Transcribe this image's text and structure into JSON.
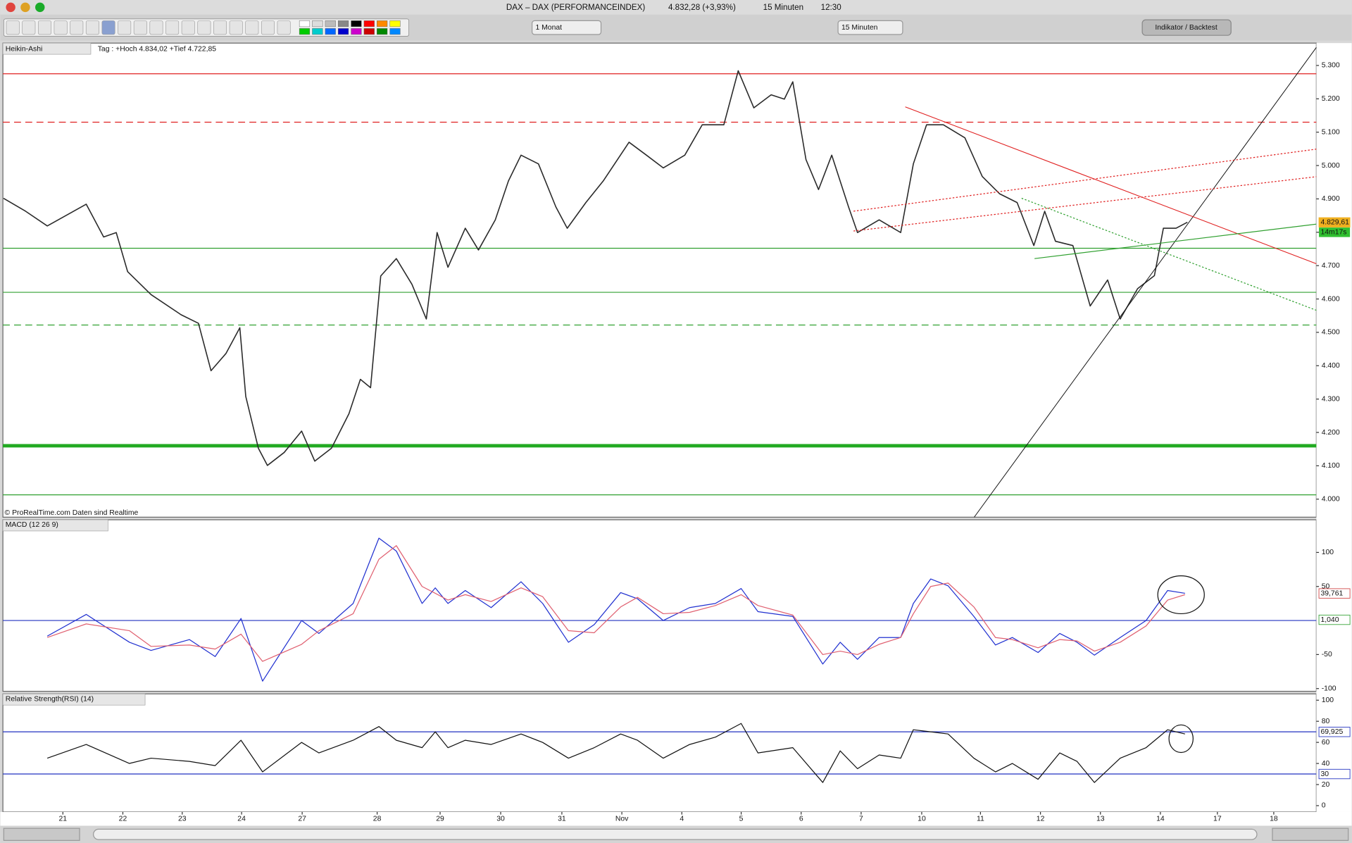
{
  "window": {
    "title": "DAX – DAX (PERFORMANCEINDEX)",
    "quote": "4.832,28 (+3,93%)",
    "interval": "15 Minuten",
    "time": "12:30"
  },
  "toolbar": {
    "period": "1 Monat",
    "interval": "15 Minuten",
    "button": "Indikator / Backtest"
  },
  "chart_data": [
    {
      "type": "line",
      "title": "Heikin-Ashi",
      "subtitle": "Tag : +Hoch 4.834,02 +Tief 4.722,85",
      "annotation": "© ProRealTime.com  Daten sind Realtime",
      "x": [
        -0.99,
        -0.62,
        -0.26,
        0.39,
        0.68,
        0.89,
        1.08,
        1.47,
        1.97,
        2.26,
        2.47,
        2.72,
        2.95,
        3.05,
        3.26,
        3.41,
        3.69,
        3.98,
        4.2,
        4.48,
        4.77,
        4.96,
        5.13,
        5.3,
        5.56,
        5.82,
        6.06,
        6.24,
        6.42,
        6.71,
        6.93,
        7.21,
        7.43,
        7.64,
        7.93,
        8.22,
        8.41,
        8.72,
        9.01,
        9.44,
        9.73,
        10.01,
        10.37,
        10.66,
        11.02,
        11.26,
        11.52,
        11.81,
        12.03,
        12.17,
        12.39,
        12.6,
        12.82,
        13.1,
        13.25,
        13.61,
        13.97,
        14.18,
        14.4,
        14.68,
        15.04,
        15.33,
        15.62,
        15.91,
        16.19,
        16.37,
        16.55,
        16.84,
        17.13,
        17.42,
        17.63,
        17.92,
        18.2,
        18.35,
        18.56,
        18.75
      ],
      "series": [
        {
          "color": "#2a2a2a",
          "values": [
            4902,
            4863,
            4819,
            4884,
            4786,
            4799,
            4682,
            4613,
            4553,
            4527,
            4385,
            4437,
            4514,
            4308,
            4153,
            4101,
            4140,
            4204,
            4114,
            4153,
            4256,
            4359,
            4334,
            4669,
            4721,
            4644,
            4540,
            4799,
            4695,
            4812,
            4747,
            4837,
            4954,
            5031,
            5005,
            4876,
            4812,
            4889,
            4954,
            5070,
            5031,
            4993,
            5031,
            5122,
            5122,
            5284,
            5173,
            5212,
            5199,
            5251,
            5018,
            4928,
            5031,
            4876,
            4799,
            4837,
            4799,
            5005,
            5122,
            5122,
            5083,
            4967,
            4915,
            4889,
            4760,
            4863,
            4773,
            4760,
            4579,
            4657,
            4540,
            4631,
            4670,
            4812,
            4812,
            4830
          ]
        }
      ],
      "xlim": [
        -1,
        20.9
      ],
      "xticks": [
        {
          "value": 0,
          "label": "21"
        },
        {
          "value": 1,
          "label": "22"
        },
        {
          "value": 1.99,
          "label": "23"
        },
        {
          "value": 2.98,
          "label": "24"
        },
        {
          "value": 3.99,
          "label": "27"
        },
        {
          "value": 5.24,
          "label": "28"
        },
        {
          "value": 6.29,
          "label": "29"
        },
        {
          "value": 7.3,
          "label": "30"
        },
        {
          "value": 8.32,
          "label": "31"
        },
        {
          "value": 9.32,
          "label": "Nov"
        },
        {
          "value": 10.32,
          "label": "4"
        },
        {
          "value": 11.31,
          "label": "5"
        },
        {
          "value": 12.31,
          "label": "6"
        },
        {
          "value": 13.31,
          "label": "7"
        },
        {
          "value": 14.32,
          "label": "10"
        },
        {
          "value": 15.3,
          "label": "11"
        },
        {
          "value": 16.3,
          "label": "12"
        },
        {
          "value": 17.3,
          "label": "13"
        },
        {
          "value": 18.3,
          "label": "14"
        },
        {
          "value": 19.25,
          "label": "17"
        },
        {
          "value": 20.19,
          "label": "18"
        }
      ],
      "ylim": [
        3946,
        5367
      ],
      "yticks": [
        {
          "value": 4000,
          "label": "4.000"
        },
        {
          "value": 4100,
          "label": "4.100"
        },
        {
          "value": 4200,
          "label": "4.200"
        },
        {
          "value": 4300,
          "label": "4.300"
        },
        {
          "value": 4400,
          "label": "4.400"
        },
        {
          "value": 4500,
          "label": "4.500"
        },
        {
          "value": 4600,
          "label": "4.600"
        },
        {
          "value": 4700,
          "label": "4.700"
        },
        {
          "value": 4800,
          "label": "4.800"
        },
        {
          "value": 4900,
          "label": "4.900"
        },
        {
          "value": 5000,
          "label": "5.000"
        },
        {
          "value": 5100,
          "label": "5.100"
        },
        {
          "value": 5200,
          "label": "5.200"
        },
        {
          "value": 5300,
          "label": "5.300"
        }
      ],
      "levels": [
        {
          "value": 5275,
          "color": "#e02020",
          "style": "solid"
        },
        {
          "value": 5130,
          "color": "#e02020",
          "style": "dashed"
        },
        {
          "value": 4752,
          "color": "#30a030",
          "style": "solid"
        },
        {
          "value": 4620,
          "color": "#30a030",
          "style": "solid"
        },
        {
          "value": 4522,
          "color": "#30a030",
          "style": "dashed"
        },
        {
          "value": 4160,
          "color": "#22aa22",
          "style": "thick"
        },
        {
          "value": 4013,
          "color": "#30a030",
          "style": "solid"
        }
      ],
      "markers": [
        {
          "value": 4829.61,
          "label": "4.829,61",
          "color": "#f0b020",
          "note": "14m17s"
        }
      ]
    },
    {
      "type": "line",
      "title": "MACD (12 26 9)",
      "x": [
        -0.26,
        0.39,
        1.11,
        1.47,
        2.11,
        2.54,
        2.97,
        3.33,
        3.98,
        4.27,
        4.84,
        5.27,
        5.56,
        5.99,
        6.21,
        6.42,
        6.71,
        7.14,
        7.64,
        8.0,
        8.43,
        8.86,
        9.3,
        9.58,
        10.01,
        10.45,
        10.88,
        11.31,
        11.59,
        12.17,
        12.67,
        12.96,
        13.25,
        13.61,
        13.97,
        14.18,
        14.47,
        14.76,
        15.19,
        15.55,
        15.83,
        16.26,
        16.62,
        16.91,
        17.2,
        17.63,
        18.06,
        18.42,
        18.71
      ],
      "series": [
        {
          "color": "#2030d0",
          "values": [
            -23,
            9,
            -32,
            -44,
            -28,
            -53,
            3,
            -89,
            0,
            -19,
            25,
            121,
            102,
            25,
            48,
            25,
            44,
            19,
            57,
            25,
            -32,
            -6,
            41,
            32,
            0,
            19,
            25,
            47,
            13,
            6,
            -64,
            -32,
            -57,
            -25,
            -25,
            25,
            61,
            51,
            6,
            -36,
            -25,
            -47,
            -19,
            -32,
            -51,
            -25,
            0,
            44,
            40
          ]
        },
        {
          "color": "#e06070",
          "values": [
            -25,
            -5,
            -15,
            -38,
            -36,
            -42,
            -20,
            -60,
            -35,
            -15,
            10,
            90,
            110,
            50,
            40,
            30,
            38,
            28,
            48,
            35,
            -15,
            -18,
            20,
            34,
            10,
            12,
            22,
            38,
            22,
            8,
            -50,
            -45,
            -50,
            -35,
            -25,
            10,
            50,
            55,
            20,
            -25,
            -28,
            -40,
            -28,
            -30,
            -45,
            -32,
            -8,
            30,
            38
          ]
        }
      ],
      "xlim": [
        -1,
        20.9
      ],
      "ylim": [
        -104,
        148
      ],
      "yticks": [
        -100,
        -50,
        50,
        100
      ],
      "levels": [
        {
          "value": 0,
          "color": "#2030c0",
          "style": "solid"
        }
      ],
      "markers": [
        {
          "value": 39.761,
          "label": "39,761",
          "color": "#d04040"
        },
        {
          "value": 1.04,
          "label": "1,040",
          "color": "#30a030"
        }
      ]
    },
    {
      "type": "line",
      "title": "Relative Strength(RSI) (14)",
      "x": [
        -0.26,
        0.39,
        1.11,
        1.47,
        2.11,
        2.54,
        2.97,
        3.33,
        3.98,
        4.27,
        4.84,
        5.27,
        5.56,
        5.99,
        6.21,
        6.42,
        6.71,
        7.14,
        7.64,
        8.0,
        8.43,
        8.86,
        9.3,
        9.58,
        10.01,
        10.45,
        10.88,
        11.31,
        11.59,
        12.17,
        12.67,
        12.96,
        13.25,
        13.61,
        13.97,
        14.18,
        14.47,
        14.76,
        15.19,
        15.55,
        15.83,
        16.26,
        16.62,
        16.91,
        17.2,
        17.63,
        18.06,
        18.42,
        18.71
      ],
      "series": [
        {
          "color": "#111111",
          "values": [
            45,
            58,
            40,
            45,
            42,
            38,
            62,
            32,
            60,
            50,
            62,
            75,
            62,
            55,
            70,
            55,
            62,
            58,
            68,
            60,
            45,
            55,
            68,
            62,
            45,
            58,
            65,
            78,
            50,
            55,
            22,
            52,
            35,
            48,
            45,
            72,
            70,
            68,
            45,
            32,
            40,
            25,
            50,
            42,
            22,
            45,
            55,
            72,
            68
          ]
        }
      ],
      "xlim": [
        -1,
        20.9
      ],
      "ylim": [
        -6,
        106
      ],
      "yticks": [
        0,
        20,
        40,
        60,
        80,
        100
      ],
      "levels": [
        {
          "value": 70,
          "color": "#2030c0",
          "style": "solid"
        },
        {
          "value": 30,
          "color": "#2030c0",
          "style": "solid"
        }
      ],
      "markers": [
        {
          "value": 69.925,
          "label": "69,925",
          "color": "#2030c0"
        },
        {
          "value": 30,
          "label": "30",
          "color": "#2030c0"
        }
      ]
    }
  ]
}
